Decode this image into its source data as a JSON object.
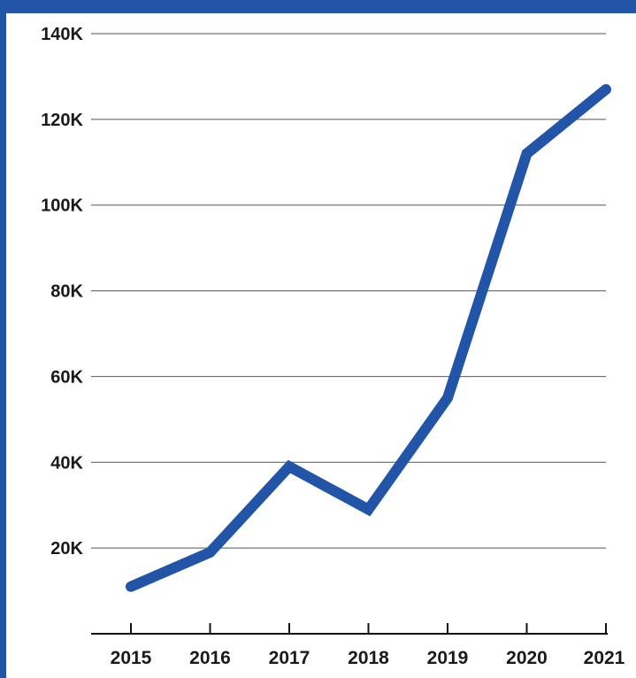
{
  "colors": {
    "frame": "#2254a8",
    "line": "#2254a8",
    "grid": "#555555",
    "text": "#1a1a1a"
  },
  "chart_data": {
    "type": "line",
    "title": "",
    "xlabel": "",
    "ylabel": "",
    "categories": [
      "2015",
      "2016",
      "2017",
      "2018",
      "2019",
      "2020",
      "2021"
    ],
    "x": [
      2015,
      2016,
      2017,
      2018,
      2019,
      2020,
      2021
    ],
    "series": [
      {
        "values": [
          11000,
          19000,
          39000,
          29000,
          55000,
          112000,
          127000
        ]
      }
    ],
    "ylim": [
      0,
      140000
    ],
    "yticks": [
      20000,
      40000,
      60000,
      80000,
      100000,
      120000,
      140000
    ],
    "ytick_labels": [
      "20K",
      "40K",
      "60K",
      "80K",
      "100K",
      "120K",
      "140K"
    ],
    "grid": "horizontal",
    "legend": "none"
  }
}
